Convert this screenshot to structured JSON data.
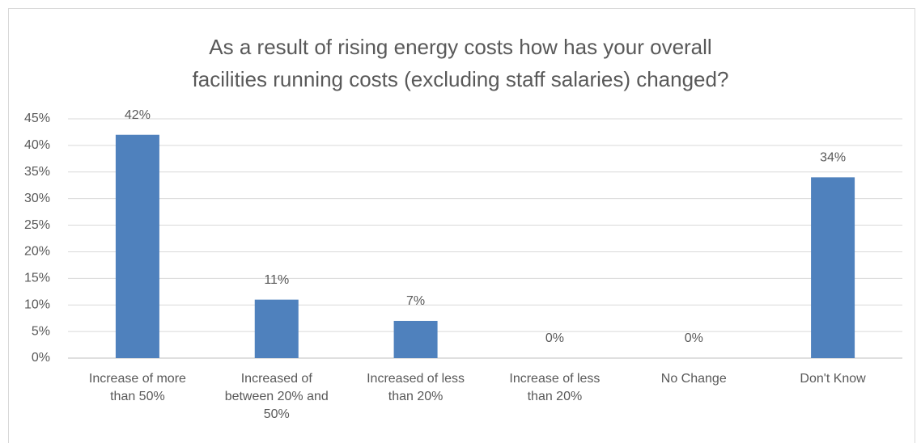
{
  "chart_data": {
    "type": "bar",
    "title": "As a result of rising energy costs how has your overall facilities running costs (excluding staff salaries) changed?",
    "categories": [
      "Increase of more than 50%",
      "Increased of between 20% and 50%",
      "Increased of less than 20%",
      "Increase of less than 20%",
      "No Change",
      "Don't Know"
    ],
    "values": [
      42,
      11,
      7,
      0,
      0,
      34
    ],
    "value_labels": [
      "42%",
      "11%",
      "7%",
      "0%",
      "0%",
      "34%"
    ],
    "color": "#4f81bd",
    "ylim": [
      0,
      45
    ],
    "yticks": [
      {
        "value": 0,
        "label": "0%"
      },
      {
        "value": 5,
        "label": "5%"
      },
      {
        "value": 10,
        "label": "10%"
      },
      {
        "value": 15,
        "label": "15%"
      },
      {
        "value": 20,
        "label": "20%"
      },
      {
        "value": 25,
        "label": "25%"
      },
      {
        "value": 30,
        "label": "30%"
      },
      {
        "value": 35,
        "label": "35%"
      },
      {
        "value": 40,
        "label": "40%"
      },
      {
        "value": 45,
        "label": "45%"
      }
    ],
    "grid": true
  }
}
